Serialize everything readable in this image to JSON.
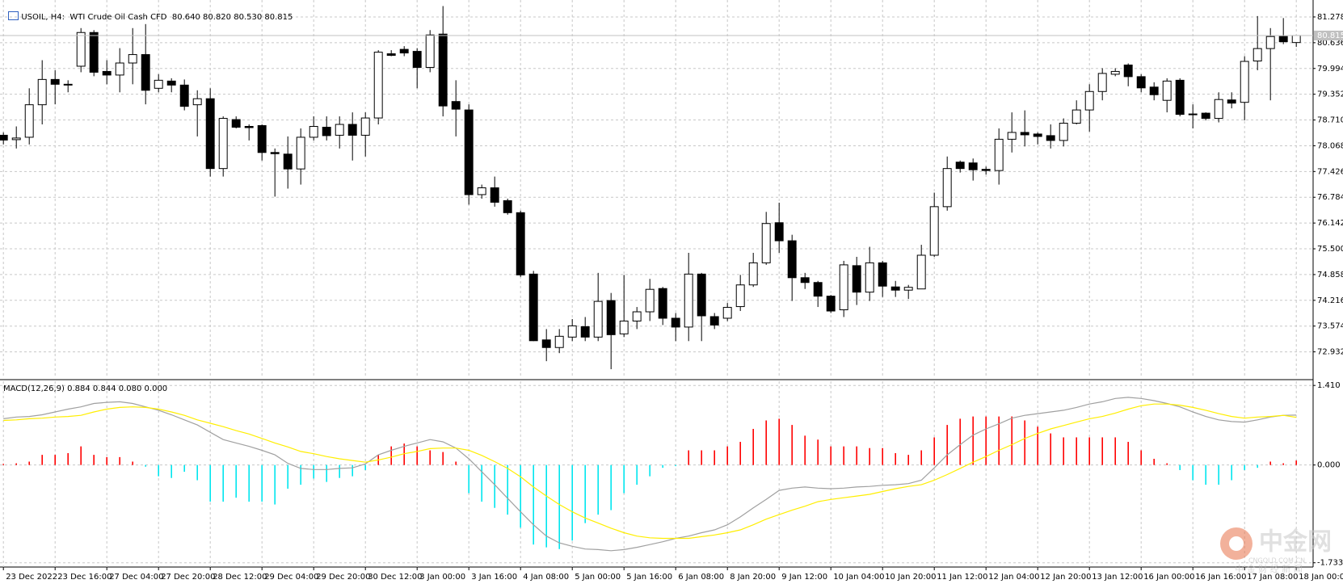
{
  "chart_data": [
    {
      "type": "candlestick",
      "title": "USOIL, H4:",
      "subtitle": "WTI Crude Oil Cash CFD",
      "ohlc_label": "80.640 80.820 80.530 80.815",
      "categories": [
        "23 Dec 2022",
        null,
        null,
        null,
        "23 Dec 16:00",
        null,
        null,
        null,
        "27 Dec 04:00",
        null,
        null,
        null,
        "27 Dec 20:00",
        null,
        null,
        null,
        "28 Dec 12:00",
        null,
        null,
        null,
        "29 Dec 04:00",
        null,
        null,
        null,
        "29 Dec 20:00",
        null,
        null,
        null,
        "30 Dec 12:00",
        null,
        null,
        null,
        "3 Jan 00:00",
        null,
        null,
        null,
        "3 Jan 16:00",
        null,
        null,
        null,
        "4 Jan 08:00",
        null,
        null,
        null,
        "5 Jan 00:00",
        null,
        null,
        null,
        "5 Jan 16:00",
        null,
        null,
        null,
        "6 Jan 08:00",
        null,
        null,
        null,
        "8 Jan 20:00",
        null,
        null,
        null,
        "9 Jan 12:00",
        null,
        null,
        null,
        "10 Jan 04:00",
        null,
        null,
        null,
        "10 Jan 20:00",
        null,
        null,
        null,
        "11 Jan 12:00",
        null,
        null,
        null,
        "12 Jan 04:00",
        null,
        null,
        null,
        "12 Jan 20:00",
        null,
        null,
        null,
        "13 Jan 12:00",
        null,
        null,
        null,
        "16 Jan 00:00",
        null,
        null,
        null,
        "16 Jan 16:00",
        null,
        null,
        null,
        "17 Jan 08:00",
        null,
        null,
        null,
        "18 Jan 00:00"
      ],
      "open": [
        78.33,
        78.22,
        78.28,
        79.09,
        79.72,
        79.6,
        80.05,
        80.89,
        79.92,
        79.83,
        80.13,
        80.34,
        79.5,
        79.68,
        79.58,
        79.09,
        79.24,
        77.5,
        78.72,
        78.55,
        78.57,
        77.9,
        77.86,
        77.49,
        78.28,
        78.53,
        78.33,
        78.6,
        78.33,
        78.76,
        80.36,
        80.47,
        80.42,
        80.02,
        80.85,
        79.17,
        78.96,
        76.85,
        77.02,
        76.7,
        76.4,
        74.87,
        73.23,
        73.04,
        73.3,
        73.56,
        73.3,
        74.21,
        73.38,
        73.7,
        73.93,
        74.51,
        73.77,
        73.55,
        74.87,
        73.81,
        73.77,
        74.06,
        74.6,
        75.15,
        76.15,
        75.7,
        74.78,
        74.66,
        74.32,
        73.98,
        75.08,
        74.42,
        75.15,
        74.55,
        74.47,
        74.5,
        75.34,
        76.55,
        77.66,
        77.64,
        77.48,
        77.45,
        78.23,
        78.4,
        78.36,
        78.32,
        78.2,
        78.63,
        78.96,
        79.42,
        79.85,
        80.08,
        79.79,
        79.53,
        79.2,
        79.7,
        78.86,
        78.88,
        78.75,
        79.21,
        79.15,
        80.18,
        80.49,
        80.79,
        80.64
      ],
      "high": [
        78.4,
        78.55,
        79.5,
        80.2,
        79.95,
        79.7,
        81.0,
        80.95,
        80.2,
        80.5,
        81.0,
        81.1,
        79.85,
        79.75,
        79.72,
        79.45,
        79.5,
        78.8,
        78.8,
        78.6,
        78.6,
        78.0,
        78.3,
        78.5,
        78.8,
        78.8,
        78.8,
        78.9,
        78.9,
        80.45,
        80.45,
        80.55,
        80.5,
        80.95,
        81.55,
        79.7,
        79.1,
        77.1,
        77.3,
        76.75,
        76.45,
        74.95,
        73.5,
        73.5,
        73.75,
        73.8,
        74.9,
        74.4,
        74.85,
        74.05,
        74.75,
        74.55,
        73.9,
        75.4,
        74.9,
        73.9,
        74.15,
        74.85,
        75.4,
        76.42,
        76.65,
        75.85,
        74.9,
        74.7,
        74.35,
        75.2,
        75.3,
        75.55,
        75.2,
        74.7,
        74.6,
        75.6,
        76.9,
        77.8,
        77.7,
        77.75,
        77.55,
        78.5,
        78.9,
        78.95,
        78.4,
        78.6,
        78.75,
        79.2,
        79.6,
        80.0,
        80.0,
        80.12,
        79.85,
        79.65,
        79.75,
        79.75,
        79.1,
        78.9,
        79.4,
        79.4,
        80.3,
        81.3,
        81.0,
        81.25,
        80.82
      ],
      "low": [
        78.1,
        78.0,
        78.1,
        78.6,
        79.1,
        79.4,
        79.9,
        79.8,
        79.6,
        79.4,
        79.6,
        79.1,
        79.4,
        79.4,
        78.95,
        78.3,
        77.3,
        77.3,
        78.5,
        78.2,
        77.7,
        76.8,
        77.0,
        77.1,
        78.2,
        78.2,
        78.0,
        77.7,
        77.8,
        78.6,
        80.3,
        80.3,
        79.5,
        79.9,
        78.8,
        78.3,
        76.6,
        76.75,
        76.55,
        76.35,
        74.8,
        73.2,
        72.7,
        72.9,
        73.2,
        73.2,
        73.2,
        72.5,
        73.3,
        73.5,
        73.7,
        73.6,
        73.2,
        73.2,
        73.2,
        73.5,
        73.7,
        73.95,
        74.55,
        75.1,
        75.4,
        74.2,
        74.5,
        74.05,
        73.9,
        73.8,
        74.1,
        74.2,
        74.3,
        74.3,
        74.25,
        74.5,
        75.3,
        76.45,
        77.4,
        77.2,
        77.35,
        77.1,
        77.9,
        78.05,
        78.1,
        78.0,
        78.05,
        78.6,
        78.42,
        79.2,
        79.8,
        79.55,
        79.4,
        79.2,
        78.9,
        78.8,
        78.5,
        78.7,
        78.65,
        79.0,
        78.7,
        79.95,
        79.2,
        80.6,
        80.53
      ],
      "close": [
        78.21,
        78.26,
        79.09,
        79.72,
        79.6,
        79.58,
        80.89,
        79.9,
        79.83,
        80.13,
        80.34,
        79.45,
        79.7,
        79.58,
        79.05,
        79.24,
        77.5,
        78.75,
        78.53,
        78.52,
        77.9,
        77.87,
        77.49,
        78.28,
        78.55,
        78.32,
        78.6,
        78.33,
        78.76,
        80.4,
        80.32,
        80.38,
        80.02,
        80.83,
        79.06,
        78.98,
        76.85,
        77.02,
        76.66,
        76.4,
        74.85,
        73.21,
        73.04,
        73.32,
        73.58,
        73.3,
        74.19,
        73.36,
        73.7,
        73.93,
        74.49,
        73.77,
        73.55,
        74.87,
        73.83,
        73.6,
        74.04,
        74.6,
        75.15,
        76.13,
        75.7,
        74.78,
        74.66,
        74.32,
        73.95,
        75.1,
        74.42,
        75.15,
        74.57,
        74.47,
        74.54,
        75.34,
        76.55,
        77.5,
        77.5,
        77.47,
        77.45,
        78.23,
        78.4,
        78.34,
        78.3,
        78.2,
        78.63,
        78.96,
        79.42,
        79.87,
        79.92,
        79.79,
        79.51,
        79.34,
        79.68,
        78.85,
        78.84,
        78.75,
        79.22,
        79.13,
        80.17,
        80.49,
        80.79,
        80.66,
        80.815
      ],
      "up_color": "#ffffff",
      "down_color": "#000000",
      "wick_color": "#000000",
      "last_price": 80.815,
      "last_price_color": "#c0c0c0",
      "ylim": [
        72.3,
        81.7
      ],
      "yticks": [
        72.932,
        73.574,
        74.216,
        74.858,
        {
          "value": 75.5,
          "label": "75.500"
        },
        76.142,
        76.784,
        77.426,
        78.068,
        {
          "value": 78.71,
          "label": "78.710"
        },
        79.352,
        79.994,
        80.636,
        81.278
      ],
      "grid": true
    },
    {
      "type": "macd",
      "title": "MACD(12,26,9) 0.884 0.844 0.080 0.000",
      "series": [
        {
          "kind": "histogram",
          "color": "#ff0000",
          "negative_color": "#00e5ee",
          "values": [
            0.02,
            0.03,
            0.06,
            0.18,
            0.18,
            0.21,
            0.33,
            0.18,
            0.14,
            0.14,
            0.06,
            -0.03,
            -0.2,
            -0.23,
            -0.12,
            -0.27,
            -0.65,
            -0.65,
            -0.58,
            -0.65,
            -0.65,
            -0.7,
            -0.42,
            -0.35,
            -0.24,
            -0.3,
            -0.23,
            -0.2,
            -0.09,
            0.18,
            0.33,
            0.38,
            0.33,
            0.26,
            0.23,
            0.06,
            -0.5,
            -0.65,
            -0.76,
            -0.88,
            -1.11,
            -1.41,
            -1.46,
            -1.49,
            -1.34,
            -1.03,
            -0.88,
            -0.8,
            -0.5,
            -0.35,
            -0.2,
            -0.05,
            -0.02,
            0.26,
            0.26,
            0.26,
            0.33,
            0.41,
            0.64,
            0.79,
            0.82,
            0.71,
            0.52,
            0.45,
            0.33,
            0.33,
            0.33,
            0.3,
            0.3,
            0.21,
            0.18,
            0.26,
            0.49,
            0.71,
            0.82,
            0.86,
            0.86,
            0.86,
            0.86,
            0.79,
            0.68,
            0.56,
            0.49,
            0.49,
            0.49,
            0.49,
            0.49,
            0.41,
            0.26,
            0.11,
            0.03,
            -0.09,
            -0.27,
            -0.35,
            -0.35,
            -0.27,
            -0.09,
            -0.05,
            0.06,
            0.03,
            0.08
          ]
        },
        {
          "kind": "line",
          "color": "#a0a0a0",
          "values": [
            0.82,
            0.85,
            0.86,
            0.89,
            0.94,
            0.99,
            1.03,
            1.09,
            1.11,
            1.12,
            1.09,
            1.03,
            0.97,
            0.89,
            0.8,
            0.71,
            0.58,
            0.45,
            0.39,
            0.33,
            0.26,
            0.18,
            0.03,
            -0.06,
            -0.08,
            -0.08,
            -0.06,
            -0.05,
            0.02,
            0.18,
            0.26,
            0.33,
            0.39,
            0.45,
            0.41,
            0.3,
            0.11,
            -0.12,
            -0.35,
            -0.59,
            -0.83,
            -1.06,
            -1.26,
            -1.38,
            -1.44,
            -1.49,
            -1.5,
            -1.52,
            -1.5,
            -1.46,
            -1.41,
            -1.36,
            -1.3,
            -1.26,
            -1.2,
            -1.15,
            -1.06,
            -0.92,
            -0.76,
            -0.61,
            -0.45,
            -0.41,
            -0.39,
            -0.41,
            -0.42,
            -0.41,
            -0.39,
            -0.38,
            -0.36,
            -0.35,
            -0.33,
            -0.27,
            -0.05,
            0.18,
            0.36,
            0.53,
            0.64,
            0.73,
            0.83,
            0.88,
            0.91,
            0.94,
            0.97,
            1.02,
            1.08,
            1.12,
            1.18,
            1.2,
            1.18,
            1.14,
            1.09,
            1.03,
            0.94,
            0.86,
            0.8,
            0.77,
            0.76,
            0.8,
            0.85,
            0.88,
            0.884
          ]
        },
        {
          "kind": "line",
          "color": "#ffee00",
          "values": [
            0.79,
            0.8,
            0.82,
            0.83,
            0.85,
            0.86,
            0.88,
            0.94,
            0.99,
            1.02,
            1.03,
            1.02,
            0.99,
            0.94,
            0.88,
            0.8,
            0.74,
            0.68,
            0.61,
            0.55,
            0.47,
            0.39,
            0.32,
            0.24,
            0.2,
            0.15,
            0.11,
            0.08,
            0.05,
            0.09,
            0.14,
            0.2,
            0.24,
            0.29,
            0.3,
            0.3,
            0.26,
            0.17,
            0.06,
            -0.06,
            -0.21,
            -0.39,
            -0.55,
            -0.7,
            -0.83,
            -0.94,
            -1.03,
            -1.12,
            -1.2,
            -1.26,
            -1.29,
            -1.3,
            -1.3,
            -1.3,
            -1.27,
            -1.24,
            -1.2,
            -1.15,
            -1.06,
            -0.96,
            -0.88,
            -0.8,
            -0.73,
            -0.65,
            -0.61,
            -0.58,
            -0.55,
            -0.52,
            -0.47,
            -0.42,
            -0.38,
            -0.35,
            -0.27,
            -0.17,
            -0.06,
            0.05,
            0.15,
            0.26,
            0.36,
            0.47,
            0.56,
            0.64,
            0.7,
            0.76,
            0.82,
            0.86,
            0.92,
            0.99,
            1.05,
            1.08,
            1.08,
            1.06,
            1.02,
            0.97,
            0.91,
            0.86,
            0.83,
            0.85,
            0.86,
            0.88,
            0.844
          ]
        }
      ],
      "ylim": [
        -1.78,
        1.47
      ],
      "yticks": [
        -1.733,
        {
          "value": 0,
          "label": "0.000"
        },
        {
          "value": 1.41,
          "label": "1.410"
        }
      ],
      "grid": true
    }
  ],
  "watermark": {
    "title": "中金网",
    "url": "CNGOLD.COM.CN",
    "tagline": "中 金 财 经 新 闻"
  }
}
